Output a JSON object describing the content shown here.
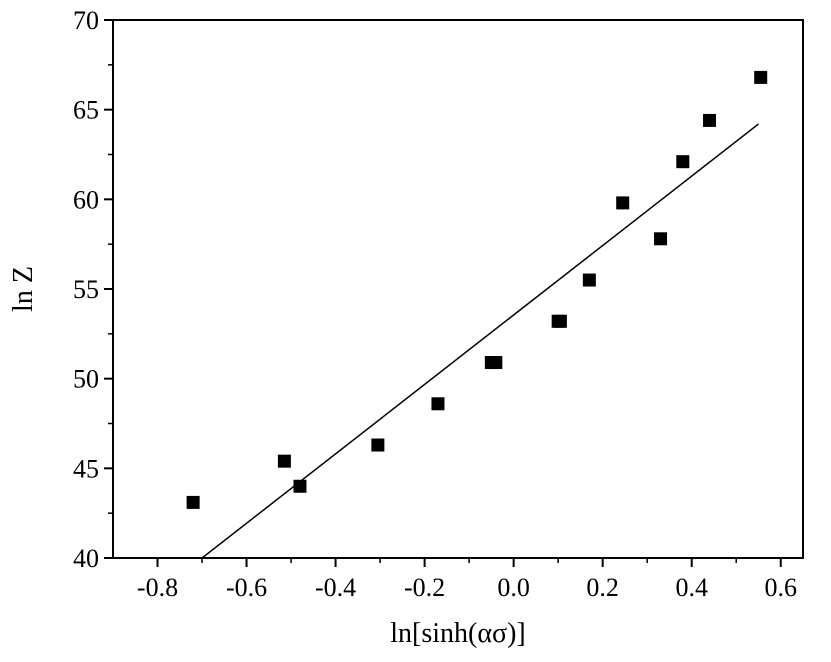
{
  "chart_data": {
    "type": "scatter",
    "title": "",
    "xlabel": "ln[sinh(ασ)]",
    "ylabel": "ln Z",
    "xlim": [
      -0.9,
      0.65
    ],
    "ylim": [
      40,
      70
    ],
    "x_ticks": [
      -0.8,
      -0.6,
      -0.4,
      -0.2,
      0.0,
      0.2,
      0.4,
      0.6
    ],
    "x_tick_labels": [
      "-0.8",
      "-0.6",
      "-0.4",
      "-0.2",
      "0.0",
      "0.2",
      "0.4",
      "0.6"
    ],
    "y_ticks": [
      40,
      45,
      50,
      55,
      60,
      65,
      70
    ],
    "y_tick_labels": [
      "40",
      "45",
      "50",
      "55",
      "60",
      "65",
      "70"
    ],
    "grid": false,
    "marker": "square",
    "colors": {
      "marker": "#000000",
      "line": "#000000"
    },
    "series": [
      {
        "points": [
          {
            "x": -0.72,
            "y": 43.1
          },
          {
            "x": -0.515,
            "y": 45.4
          },
          {
            "x": -0.48,
            "y": 44.0
          },
          {
            "x": -0.305,
            "y": 46.3
          },
          {
            "x": -0.17,
            "y": 48.6
          },
          {
            "x": -0.05,
            "y": 50.9
          },
          {
            "x": -0.04,
            "y": 50.9
          },
          {
            "x": 0.1,
            "y": 53.2
          },
          {
            "x": 0.105,
            "y": 53.2
          },
          {
            "x": 0.17,
            "y": 55.5
          },
          {
            "x": 0.245,
            "y": 59.8
          },
          {
            "x": 0.33,
            "y": 57.8
          },
          {
            "x": 0.38,
            "y": 62.1
          },
          {
            "x": 0.44,
            "y": 64.4
          },
          {
            "x": 0.555,
            "y": 66.8
          }
        ]
      }
    ],
    "fit_line": {
      "x": [
        -0.7,
        0.55
      ],
      "y": [
        40.0,
        64.2
      ]
    }
  }
}
